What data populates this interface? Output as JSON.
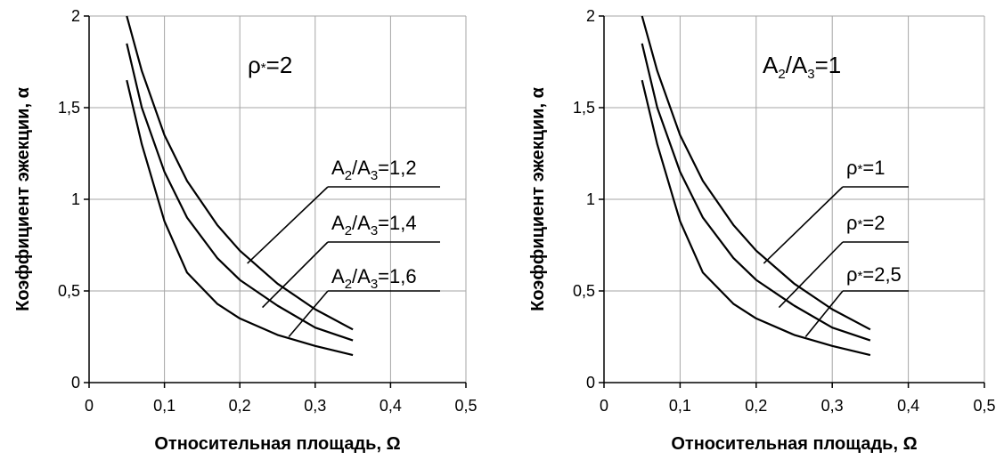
{
  "chart_data": [
    {
      "type": "line",
      "title": "ρ*=2",
      "xlabel": "Относительная площадь, Ω",
      "ylabel": "Коэффициент эжекции, α",
      "xlim": [
        0,
        0.5
      ],
      "ylim": [
        0,
        2
      ],
      "xticks": [
        "0",
        "0,1",
        "0,2",
        "0,3",
        "0,4",
        "0,5"
      ],
      "yticks": [
        "0",
        "0,5",
        "1",
        "1,5",
        "2"
      ],
      "grid": true,
      "series": [
        {
          "name": "A2/A3=1,2",
          "label_parts": [
            "A",
            "2",
            "/A",
            "3",
            "=1,2"
          ],
          "x": [
            0.05,
            0.07,
            0.1,
            0.13,
            0.17,
            0.2,
            0.25,
            0.3,
            0.35
          ],
          "y": [
            2.0,
            1.7,
            1.35,
            1.1,
            0.86,
            0.72,
            0.54,
            0.4,
            0.29
          ]
        },
        {
          "name": "A2/A3=1,4",
          "label_parts": [
            "A",
            "2",
            "/A",
            "3",
            "=1,4"
          ],
          "x": [
            0.05,
            0.07,
            0.1,
            0.13,
            0.17,
            0.2,
            0.25,
            0.3,
            0.35
          ],
          "y": [
            1.85,
            1.5,
            1.15,
            0.9,
            0.68,
            0.56,
            0.42,
            0.3,
            0.23
          ]
        },
        {
          "name": "A2/A3=1,6",
          "label_parts": [
            "A",
            "2",
            "/A",
            "3",
            "=1,6"
          ],
          "x": [
            0.05,
            0.07,
            0.1,
            0.13,
            0.17,
            0.2,
            0.25,
            0.3,
            0.35
          ],
          "y": [
            1.65,
            1.3,
            0.88,
            0.6,
            0.43,
            0.35,
            0.26,
            0.2,
            0.15
          ]
        }
      ]
    },
    {
      "type": "line",
      "title": "A2/A3=1",
      "title_parts": [
        "A",
        "2",
        "/A",
        "3",
        "=1"
      ],
      "xlabel": "Относительная площадь, Ω",
      "ylabel": "Коэффициент эжекции, α",
      "xlim": [
        0,
        0.5
      ],
      "ylim": [
        0,
        2
      ],
      "xticks": [
        "0",
        "0,1",
        "0,2",
        "0,3",
        "0,4",
        "0,5"
      ],
      "yticks": [
        "0",
        "0,5",
        "1",
        "1,5",
        "2"
      ],
      "grid": true,
      "series": [
        {
          "name": "ρ*=1",
          "label_parts": [
            "ρ",
            "*",
            "=1"
          ],
          "x": [
            0.05,
            0.07,
            0.1,
            0.13,
            0.17,
            0.2,
            0.25,
            0.3,
            0.35
          ],
          "y": [
            2.0,
            1.7,
            1.35,
            1.1,
            0.86,
            0.72,
            0.54,
            0.4,
            0.29
          ]
        },
        {
          "name": "ρ*=2",
          "label_parts": [
            "ρ",
            "*",
            "=2"
          ],
          "x": [
            0.05,
            0.07,
            0.1,
            0.13,
            0.17,
            0.2,
            0.25,
            0.3,
            0.35
          ],
          "y": [
            1.85,
            1.5,
            1.15,
            0.9,
            0.68,
            0.56,
            0.42,
            0.3,
            0.23
          ]
        },
        {
          "name": "ρ*=2,5",
          "label_parts": [
            "ρ",
            "*",
            "=2,5"
          ],
          "x": [
            0.05,
            0.07,
            0.1,
            0.13,
            0.17,
            0.2,
            0.25,
            0.3,
            0.35
          ],
          "y": [
            1.65,
            1.3,
            0.88,
            0.6,
            0.43,
            0.35,
            0.26,
            0.2,
            0.15
          ]
        }
      ]
    }
  ]
}
